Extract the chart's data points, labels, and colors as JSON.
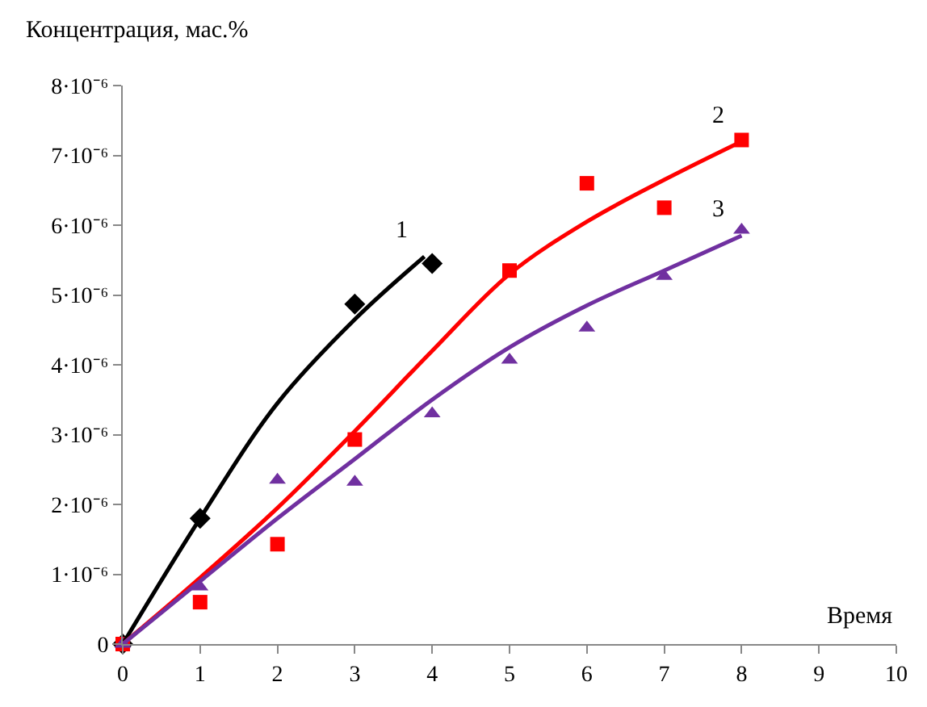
{
  "chart_data": {
    "type": "scatter",
    "xlabel": "Время",
    "ylabel": "Концентрация, мас.%",
    "xlim": [
      0,
      10
    ],
    "xticks": [
      0,
      1,
      2,
      3,
      4,
      5,
      6,
      7,
      8,
      9,
      10
    ],
    "ylim": [
      0,
      8e-06
    ],
    "yticks": [
      0,
      {
        "value": 1e-06,
        "label": "1·10⁻⁶"
      },
      {
        "value": 2e-06,
        "label": "2·10⁻⁶"
      },
      {
        "value": 3e-06,
        "label": "3·10⁻⁶"
      },
      {
        "value": 4e-06,
        "label": "4·10⁻⁶"
      },
      {
        "value": 5e-06,
        "label": "5·10⁻⁶"
      },
      {
        "value": 6e-06,
        "label": "6·10⁻⁶"
      },
      {
        "value": 7e-06,
        "label": "7·10⁻⁶"
      },
      {
        "value": 8e-06,
        "label": "8·10⁻⁶"
      }
    ],
    "legend": false,
    "series": [
      {
        "marker": "diamond",
        "color": "#000000",
        "x": [
          0,
          1,
          3,
          4
        ],
        "values": [
          0,
          1.8e-06,
          4.87e-06,
          5.45e-06
        ]
      },
      {
        "marker": "square",
        "color": "#ff0000",
        "x": [
          0,
          1,
          2,
          3,
          5,
          6,
          7,
          8
        ],
        "values": [
          0,
          6e-07,
          1.43e-06,
          2.93e-06,
          5.35e-06,
          6.6e-06,
          6.25e-06,
          7.22e-06
        ]
      },
      {
        "marker": "triangle",
        "color": "#7030a0",
        "x": [
          0,
          1,
          2,
          3,
          4,
          5,
          6,
          7,
          8
        ],
        "values": [
          0,
          8.2e-07,
          2.35e-06,
          2.32e-06,
          3.3e-06,
          4.07e-06,
          4.53e-06,
          5.27e-06,
          5.93e-06
        ]
      },
      {
        "type": "line",
        "name": "1",
        "marker": "none",
        "color": "#000000",
        "x": [
          0,
          1,
          2,
          3,
          3.9
        ],
        "values": [
          0,
          1.8e-06,
          3.45e-06,
          4.65e-06,
          5.55e-06
        ]
      },
      {
        "type": "line",
        "name": "2",
        "marker": "none",
        "color": "#ff0000",
        "x": [
          0,
          1,
          2,
          3,
          4,
          5,
          6,
          7,
          8
        ],
        "values": [
          0,
          9.5e-07,
          1.95e-06,
          3.05e-06,
          4.2e-06,
          5.3e-06,
          6.05e-06,
          6.65e-06,
          7.2e-06
        ]
      },
      {
        "type": "line",
        "name": "3",
        "marker": "none",
        "color": "#7030a0",
        "x": [
          0,
          1,
          2,
          3,
          4,
          5,
          6,
          7,
          8
        ],
        "values": [
          0,
          9e-07,
          1.8e-06,
          2.65e-06,
          3.5e-06,
          4.25e-06,
          4.85e-06,
          5.35e-06,
          5.85e-06
        ]
      }
    ]
  }
}
